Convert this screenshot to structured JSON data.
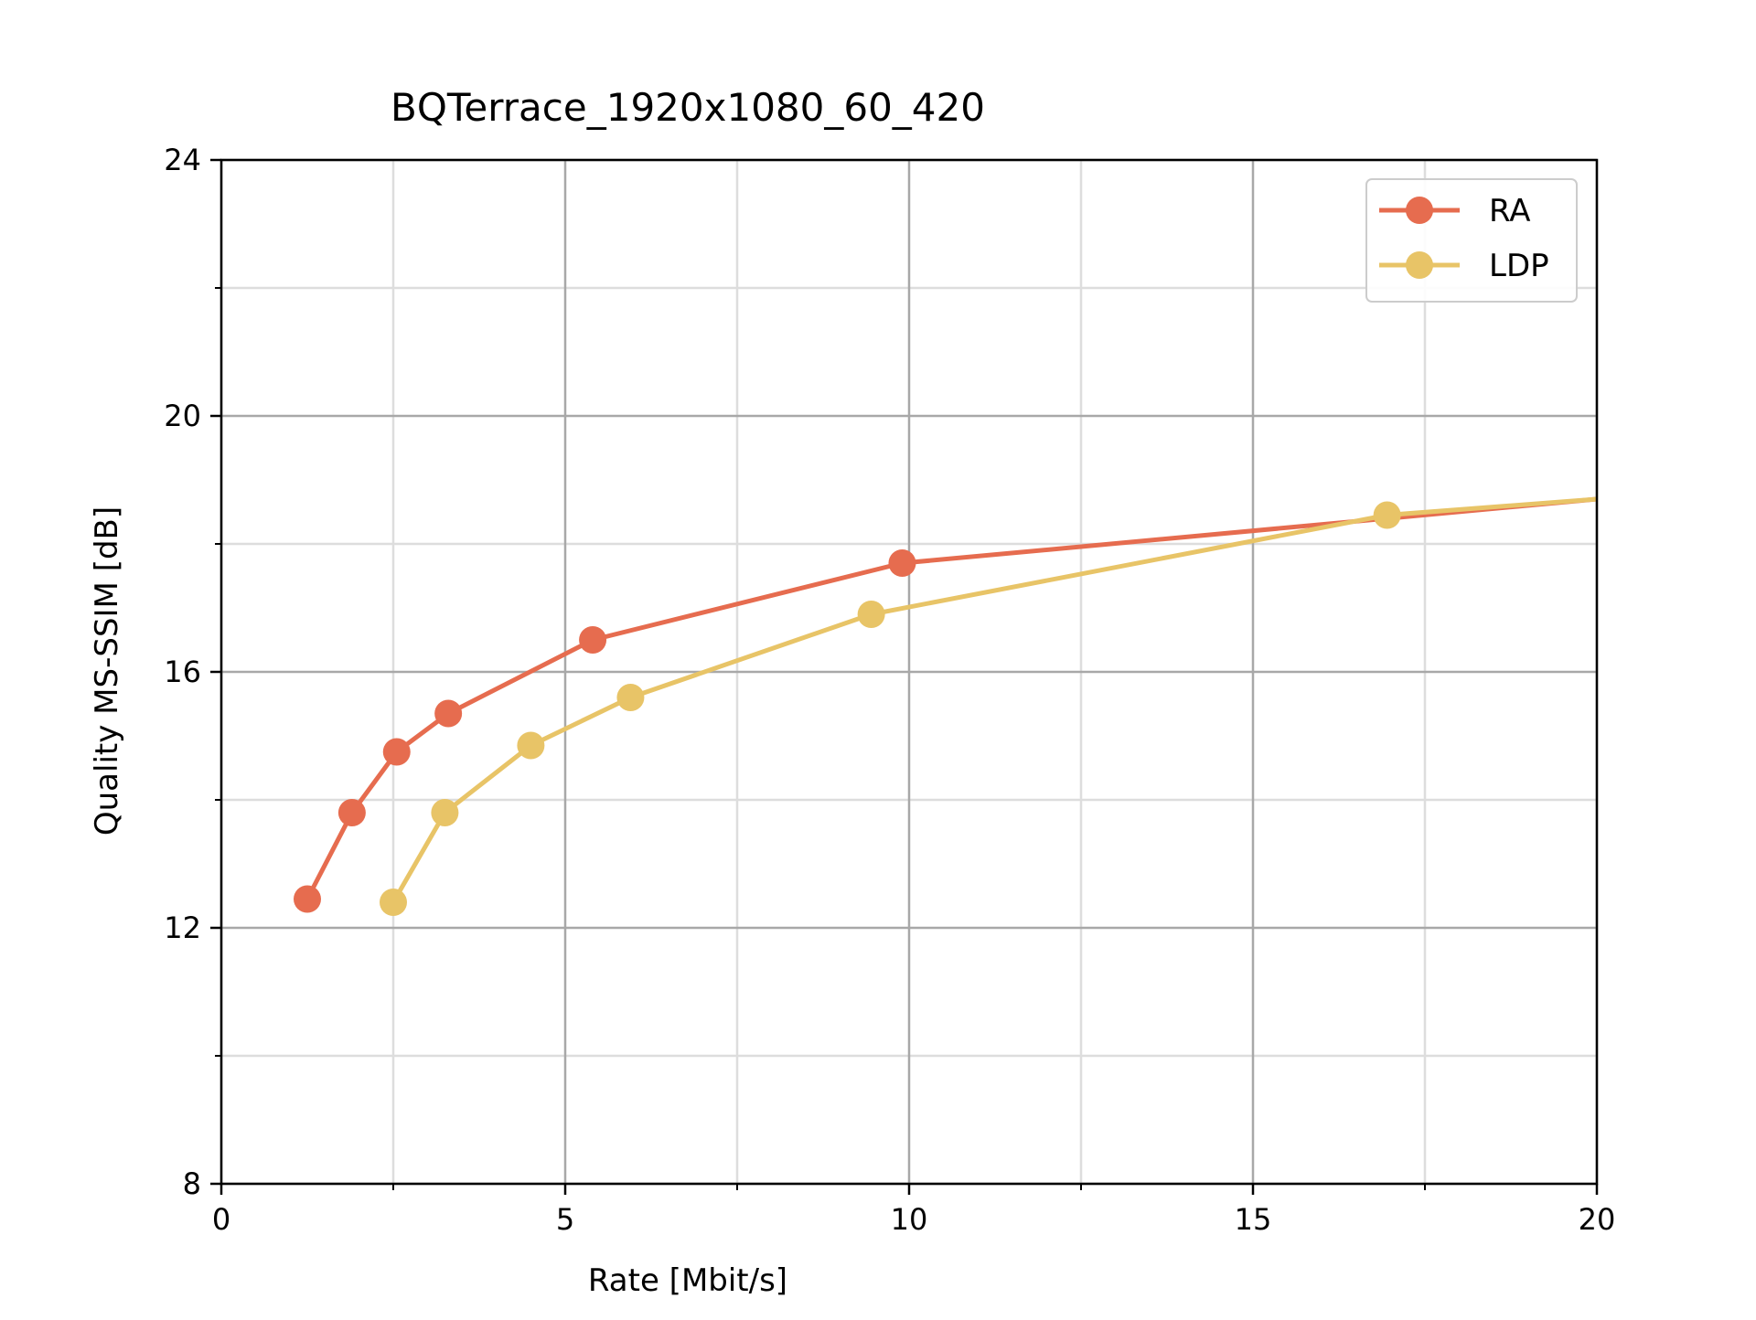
{
  "chart_data": {
    "type": "line",
    "title": "BQTerrace_1920x1080_60_420",
    "xlabel": "Rate [Mbit/s]",
    "ylabel": "Quality MS-SSIM [dB]",
    "xlim": [
      0,
      20
    ],
    "ylim": [
      8,
      24
    ],
    "xticks": [
      0,
      5,
      10,
      15,
      20
    ],
    "yticks": [
      8,
      12,
      16,
      20,
      24
    ],
    "xminor": [
      2.5,
      7.5,
      12.5,
      17.5
    ],
    "yminor": [
      10,
      14,
      18,
      22
    ],
    "grid": true,
    "legend_position": "top-right",
    "series": [
      {
        "name": "RA",
        "color": "#e66c4f",
        "points": [
          [
            1.25,
            12.45
          ],
          [
            1.9,
            13.8
          ],
          [
            2.55,
            14.75
          ],
          [
            3.3,
            15.35
          ],
          [
            5.4,
            16.5
          ],
          [
            9.9,
            17.7
          ],
          [
            20.0,
            18.7
          ]
        ],
        "marker_count": 6
      },
      {
        "name": "LDP",
        "color": "#e8c467",
        "points": [
          [
            2.5,
            12.4
          ],
          [
            3.25,
            13.8
          ],
          [
            4.5,
            14.85
          ],
          [
            5.95,
            15.6
          ],
          [
            9.45,
            16.9
          ],
          [
            16.95,
            18.45
          ],
          [
            20.0,
            18.7
          ]
        ],
        "marker_count": 6
      }
    ]
  }
}
